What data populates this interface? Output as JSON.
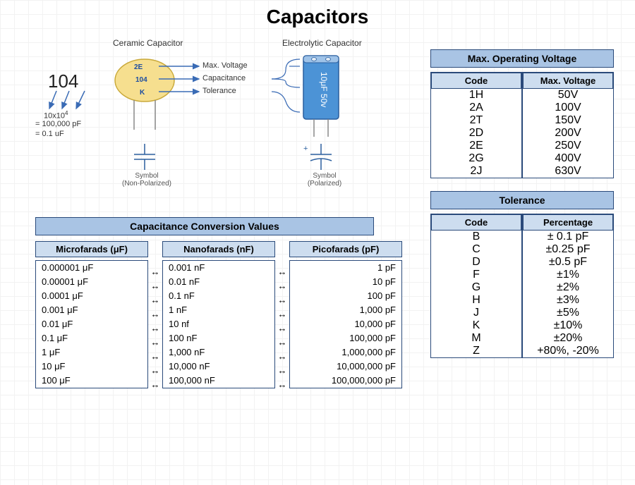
{
  "title": "Capacitors",
  "colors": {
    "header_fill": "#a9c4e4",
    "subhead_fill": "#cdddef",
    "border": "#2a4a7a",
    "ceramic_fill": "#f6df8f",
    "ceramic_stroke": "#c9a93a",
    "electrolytic_fill": "#4c93d6",
    "electrolytic_stroke": "#2a5e9e",
    "arrow": "#3a6bb5"
  },
  "diagram": {
    "ceramic_title": "Ceramic Capacitor",
    "electrolytic_title": "Electrolytic Capacitor",
    "code_big": "104",
    "ceramic_markings": {
      "line1": "2E",
      "line2": "104",
      "line3": "K"
    },
    "label_maxvoltage": "Max. Voltage",
    "label_capacitance": "Capacitance",
    "label_tolerance": "Tolerance",
    "explain_line1": "10x10",
    "explain_exp": "4",
    "explain_line2": "= 100,000 pF",
    "explain_line3": "= 0.1 uF",
    "electrolytic_text": "10μF 50v",
    "symbol_np_line1": "Symbol",
    "symbol_np_line2": "(Non-Polarized)",
    "symbol_p_line1": "Symbol",
    "symbol_p_line2": "(Polarized)"
  },
  "voltage": {
    "title": "Max. Operating Voltage",
    "col1": "Code",
    "col2": "Max. Voltage",
    "rows": [
      {
        "c": "1H",
        "v": "50V"
      },
      {
        "c": "2A",
        "v": "100V"
      },
      {
        "c": "2T",
        "v": "150V"
      },
      {
        "c": "2D",
        "v": "200V"
      },
      {
        "c": "2E",
        "v": "250V"
      },
      {
        "c": "2G",
        "v": "400V"
      },
      {
        "c": "2J",
        "v": "630V"
      }
    ]
  },
  "tolerance": {
    "title": "Tolerance",
    "col1": "Code",
    "col2": "Percentage",
    "rows": [
      {
        "c": "B",
        "v": "± 0.1 pF"
      },
      {
        "c": "C",
        "v": "±0.25 pF"
      },
      {
        "c": "D",
        "v": "±0.5 pF"
      },
      {
        "c": "F",
        "v": "±1%"
      },
      {
        "c": "G",
        "v": "±2%"
      },
      {
        "c": "H",
        "v": "±3%"
      },
      {
        "c": "J",
        "v": "±5%"
      },
      {
        "c": "K",
        "v": "±10%"
      },
      {
        "c": "M",
        "v": "±20%"
      },
      {
        "c": "Z",
        "v": "+80%, -20%"
      }
    ]
  },
  "conversion": {
    "title": "Capacitance Conversion Values",
    "cols": {
      "uf": {
        "head": "Microfarads (μF)",
        "align": "l",
        "vals": [
          "0.000001 μF",
          "0.00001 μF",
          "0.0001 μF",
          "0.001 μF",
          "0.01 μF",
          "0.1 μF",
          "1 μF",
          "10 μF",
          "100 μF"
        ]
      },
      "nf": {
        "head": "Nanofarads (nF)",
        "align": "l",
        "vals": [
          "0.001 nF",
          "0.01 nF",
          "0.1 nF",
          "1 nF",
          "10 nf",
          "100 nF",
          "1,000 nF",
          "10,000 nF",
          "100,000 nF"
        ]
      },
      "pf": {
        "head": "Picofarads (pF)",
        "align": "r",
        "vals": [
          "1 pF",
          "10 pF",
          "100 pF",
          "1,000 pF",
          "10,000 pF",
          "100,000 pF",
          "1,000,000 pF",
          "10,000,000 pF",
          "100,000,000 pF"
        ]
      }
    },
    "arrow_glyph": "↔"
  }
}
